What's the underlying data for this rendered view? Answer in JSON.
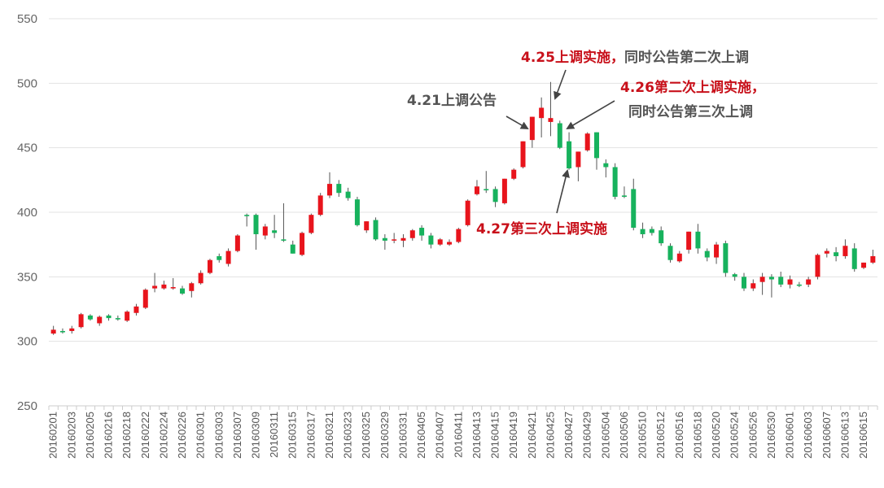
{
  "chart_data": {
    "type": "candlestick",
    "colors": {
      "up": "#e8141c",
      "down": "#17b25d",
      "grid": "#e3e3e3",
      "annotation_red": "#c8101a",
      "annotation_gray": "#555555",
      "arrow": "#444444"
    },
    "yaxis": {
      "ticks": [
        250,
        300,
        350,
        400,
        450,
        500,
        550
      ],
      "ylim": [
        250,
        550
      ]
    },
    "grid": true,
    "legend": "none",
    "x_tick_labels": [
      "20160201",
      "20160203",
      "20160205",
      "20160216",
      "20160218",
      "20160222",
      "20160224",
      "20160226",
      "20160301",
      "20160303",
      "20160307",
      "20160309",
      "20160311",
      "20160315",
      "20160317",
      "20160321",
      "20160323",
      "20160325",
      "20160329",
      "20160331",
      "20160405",
      "20160407",
      "20160411",
      "20160413",
      "20160415",
      "20160419",
      "20160421",
      "20160425",
      "20160427",
      "20160429",
      "20160504",
      "20160506",
      "20160510",
      "20160512",
      "20160516",
      "20160518",
      "20160520",
      "20160524",
      "20160526",
      "20160530",
      "20160601",
      "20160603",
      "20160607",
      "20160613",
      "20160615"
    ],
    "candles": [
      {
        "o": 306,
        "h": 312,
        "l": 305,
        "c": 309
      },
      {
        "o": 308,
        "h": 310,
        "l": 306,
        "c": 307
      },
      {
        "o": 308,
        "h": 312,
        "l": 306,
        "c": 310
      },
      {
        "o": 311,
        "h": 322,
        "l": 310,
        "c": 321
      },
      {
        "o": 320,
        "h": 321,
        "l": 316,
        "c": 317
      },
      {
        "o": 314,
        "h": 320,
        "l": 312,
        "c": 319
      },
      {
        "o": 320,
        "h": 321,
        "l": 316,
        "c": 318
      },
      {
        "o": 318,
        "h": 320,
        "l": 316,
        "c": 317
      },
      {
        "o": 316,
        "h": 324,
        "l": 315,
        "c": 323
      },
      {
        "o": 322,
        "h": 329,
        "l": 320,
        "c": 327
      },
      {
        "o": 326,
        "h": 341,
        "l": 325,
        "c": 340
      },
      {
        "o": 341,
        "h": 353,
        "l": 338,
        "c": 343
      },
      {
        "o": 341,
        "h": 347,
        "l": 340,
        "c": 344
      },
      {
        "o": 341,
        "h": 349,
        "l": 340,
        "c": 342
      },
      {
        "o": 341,
        "h": 343,
        "l": 336,
        "c": 337
      },
      {
        "o": 339,
        "h": 346,
        "l": 334,
        "c": 345
      },
      {
        "o": 345,
        "h": 355,
        "l": 344,
        "c": 353
      },
      {
        "o": 353,
        "h": 364,
        "l": 352,
        "c": 363
      },
      {
        "o": 366,
        "h": 368,
        "l": 361,
        "c": 363
      },
      {
        "o": 360,
        "h": 372,
        "l": 358,
        "c": 370
      },
      {
        "o": 370,
        "h": 383,
        "l": 369,
        "c": 382
      },
      {
        "o": 398,
        "h": 399,
        "l": 389,
        "c": 397
      },
      {
        "o": 398,
        "h": 399,
        "l": 371,
        "c": 383
      },
      {
        "o": 382,
        "h": 391,
        "l": 379,
        "c": 389
      },
      {
        "o": 386,
        "h": 398,
        "l": 380,
        "c": 384
      },
      {
        "o": 379,
        "h": 407,
        "l": 377,
        "c": 378
      },
      {
        "o": 375,
        "h": 378,
        "l": 368,
        "c": 368
      },
      {
        "o": 367,
        "h": 385,
        "l": 366,
        "c": 384
      },
      {
        "o": 384,
        "h": 399,
        "l": 383,
        "c": 398
      },
      {
        "o": 398,
        "h": 415,
        "l": 397,
        "c": 413
      },
      {
        "o": 413,
        "h": 431,
        "l": 411,
        "c": 422
      },
      {
        "o": 422,
        "h": 425,
        "l": 412,
        "c": 415
      },
      {
        "o": 416,
        "h": 419,
        "l": 409,
        "c": 411
      },
      {
        "o": 410,
        "h": 412,
        "l": 389,
        "c": 390
      },
      {
        "o": 386,
        "h": 393,
        "l": 384,
        "c": 393
      },
      {
        "o": 394,
        "h": 396,
        "l": 378,
        "c": 379
      },
      {
        "o": 380,
        "h": 383,
        "l": 371,
        "c": 378
      },
      {
        "o": 379,
        "h": 384,
        "l": 376,
        "c": 379
      },
      {
        "o": 378,
        "h": 383,
        "l": 373,
        "c": 380
      },
      {
        "o": 380,
        "h": 387,
        "l": 378,
        "c": 386
      },
      {
        "o": 388,
        "h": 390,
        "l": 378,
        "c": 382
      },
      {
        "o": 382,
        "h": 384,
        "l": 372,
        "c": 375
      },
      {
        "o": 375,
        "h": 380,
        "l": 374,
        "c": 379
      },
      {
        "o": 375,
        "h": 379,
        "l": 374,
        "c": 377
      },
      {
        "o": 377,
        "h": 388,
        "l": 376,
        "c": 387
      },
      {
        "o": 390,
        "h": 410,
        "l": 389,
        "c": 409
      },
      {
        "o": 414,
        "h": 425,
        "l": 413,
        "c": 420
      },
      {
        "o": 418,
        "h": 432,
        "l": 415,
        "c": 417
      },
      {
        "o": 418,
        "h": 420,
        "l": 404,
        "c": 408
      },
      {
        "o": 407,
        "h": 426,
        "l": 406,
        "c": 426
      },
      {
        "o": 426,
        "h": 434,
        "l": 425,
        "c": 433
      },
      {
        "o": 435,
        "h": 455,
        "l": 434,
        "c": 455
      },
      {
        "o": 456,
        "h": 474,
        "l": 450,
        "c": 474
      },
      {
        "o": 473,
        "h": 489,
        "l": 458,
        "c": 481
      },
      {
        "o": 470,
        "h": 501,
        "l": 459,
        "c": 473
      },
      {
        "o": 469,
        "h": 471,
        "l": 449,
        "c": 450
      },
      {
        "o": 455,
        "h": 462,
        "l": 433,
        "c": 434
      },
      {
        "o": 435,
        "h": 447,
        "l": 424,
        "c": 447
      },
      {
        "o": 448,
        "h": 462,
        "l": 447,
        "c": 461
      },
      {
        "o": 462,
        "h": 462,
        "l": 433,
        "c": 442
      },
      {
        "o": 438,
        "h": 441,
        "l": 427,
        "c": 435
      },
      {
        "o": 435,
        "h": 438,
        "l": 410,
        "c": 412
      },
      {
        "o": 413,
        "h": 420,
        "l": 411,
        "c": 412
      },
      {
        "o": 418,
        "h": 426,
        "l": 386,
        "c": 388
      },
      {
        "o": 387,
        "h": 392,
        "l": 380,
        "c": 383
      },
      {
        "o": 387,
        "h": 389,
        "l": 382,
        "c": 384
      },
      {
        "o": 386,
        "h": 389,
        "l": 374,
        "c": 376
      },
      {
        "o": 374,
        "h": 376,
        "l": 361,
        "c": 363
      },
      {
        "o": 362,
        "h": 370,
        "l": 361,
        "c": 368
      },
      {
        "o": 371,
        "h": 385,
        "l": 368,
        "c": 385
      },
      {
        "o": 385,
        "h": 391,
        "l": 368,
        "c": 372
      },
      {
        "o": 370,
        "h": 372,
        "l": 362,
        "c": 365
      },
      {
        "o": 365,
        "h": 377,
        "l": 360,
        "c": 375
      },
      {
        "o": 376,
        "h": 378,
        "l": 350,
        "c": 353
      },
      {
        "o": 352,
        "h": 353,
        "l": 347,
        "c": 350
      },
      {
        "o": 350,
        "h": 353,
        "l": 339,
        "c": 341
      },
      {
        "o": 341,
        "h": 348,
        "l": 339,
        "c": 345
      },
      {
        "o": 346,
        "h": 353,
        "l": 336,
        "c": 350
      },
      {
        "o": 350,
        "h": 352,
        "l": 334,
        "c": 348
      },
      {
        "o": 350,
        "h": 354,
        "l": 342,
        "c": 344
      },
      {
        "o": 344,
        "h": 351,
        "l": 341,
        "c": 348
      },
      {
        "o": 344,
        "h": 346,
        "l": 342,
        "c": 343
      },
      {
        "o": 344,
        "h": 350,
        "l": 342,
        "c": 348
      },
      {
        "o": 350,
        "h": 368,
        "l": 348,
        "c": 367
      },
      {
        "o": 368,
        "h": 372,
        "l": 365,
        "c": 370
      },
      {
        "o": 369,
        "h": 373,
        "l": 362,
        "c": 366
      },
      {
        "o": 366,
        "h": 379,
        "l": 364,
        "c": 374
      },
      {
        "o": 372,
        "h": 376,
        "l": 354,
        "c": 356
      },
      {
        "o": 357,
        "h": 361,
        "l": 356,
        "c": 361
      },
      {
        "o": 361,
        "h": 371,
        "l": 360,
        "c": 366
      }
    ],
    "annotations": [
      {
        "text": "4.21上调公告",
        "style": "gray",
        "pos": [
          500,
          129
        ],
        "arrow_from": [
          622,
          143
        ],
        "arrow_to": [
          648,
          158
        ]
      },
      {
        "text_red": "4.25上调实施，",
        "text_gray": "同时公告第二次上调",
        "pos": [
          640,
          76
        ],
        "arrow_from": [
          695,
          86
        ],
        "arrow_to": [
          682,
          121
        ]
      },
      {
        "text_red": "4.26第二次上调实施，",
        "pos": [
          762,
          113
        ],
        "arrow_from": [
          755,
          124
        ],
        "arrow_to": [
          697,
          158
        ]
      },
      {
        "text": "同时公告第三次上调",
        "style": "gray",
        "pos": [
          772,
          143
        ]
      },
      {
        "text": "4.27第三次上调实施",
        "style": "red",
        "pos": [
          585,
          287
        ],
        "arrow_from": [
          684,
          262
        ],
        "arrow_to": [
          697,
          210
        ]
      }
    ]
  }
}
